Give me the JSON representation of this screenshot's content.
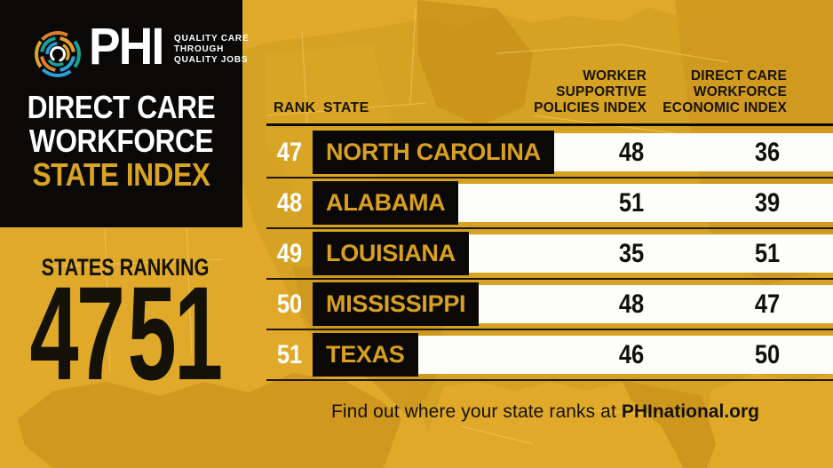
{
  "brand": {
    "logo_text": "PHI",
    "tagline_lines": [
      "QUALITY CARE",
      "THROUGH",
      "QUALITY JOBS"
    ],
    "title_line1": "DIRECT CARE",
    "title_line2": "WORKFORCE",
    "title_line3": "STATE INDEX"
  },
  "ranking_callout": {
    "label": "STATES RANKING",
    "range_start": "47",
    "range_end": "51"
  },
  "table": {
    "headers": {
      "rank": "RANK",
      "state": "STATE",
      "col1_lines": [
        "WORKER",
        "SUPPORTIVE",
        "POLICIES INDEX"
      ],
      "col2_lines": [
        "DIRECT CARE",
        "WORKFORCE",
        "ECONOMIC INDEX"
      ]
    },
    "rows": [
      {
        "rank": "47",
        "state": "NORTH CAROLINA",
        "worker_supportive_policies_index": "48",
        "direct_care_workforce_economic_index": "36"
      },
      {
        "rank": "48",
        "state": "ALABAMA",
        "worker_supportive_policies_index": "51",
        "direct_care_workforce_economic_index": "39"
      },
      {
        "rank": "49",
        "state": "LOUISIANA",
        "worker_supportive_policies_index": "35",
        "direct_care_workforce_economic_index": "51"
      },
      {
        "rank": "50",
        "state": "MISSISSIPPI",
        "worker_supportive_policies_index": "48",
        "direct_care_workforce_economic_index": "47"
      },
      {
        "rank": "51",
        "state": "TEXAS",
        "worker_supportive_policies_index": "46",
        "direct_care_workforce_economic_index": "50"
      }
    ]
  },
  "footer": {
    "text_prefix": "Find out where your state ranks at ",
    "site": "PHInational.org"
  },
  "icons": {
    "logo": "phi-rings-logo"
  },
  "colors": {
    "background_gold": "#E0A929",
    "map_shape_gold": "#D49E23",
    "map_dark_gold": "#CB941C",
    "map_border_light": "#EFC95F",
    "panel_black": "#0A0908",
    "gold_text": "#D9A422",
    "orange_dash": "#C85C1E",
    "bar_white": "#FDFDFB",
    "logo_teal": "#17A398",
    "logo_blue": "#2B9FD9",
    "logo_gold": "#DFA12A",
    "logo_orange": "#DE7E2E"
  }
}
